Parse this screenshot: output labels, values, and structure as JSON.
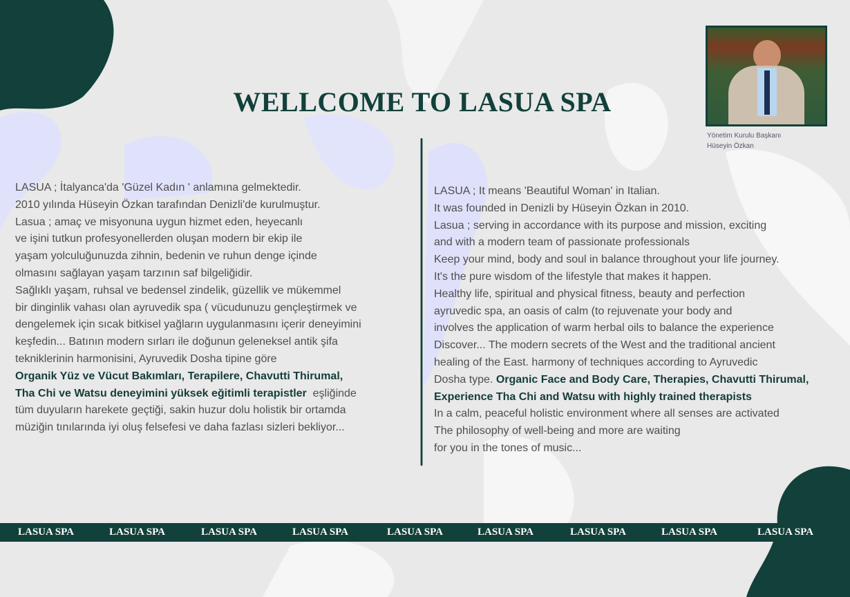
{
  "title": "WELLCOME TO LASUA SPA",
  "portrait": {
    "caption_role": "Yönetim Kurulu Başkanı",
    "caption_name": "Hüseyin Özkan"
  },
  "colors": {
    "brand": "#12403a",
    "background": "#e9e9ea",
    "text": "#4e4e4e"
  },
  "turkish": [
    "LASUA ; İtalyanca'da 'Güzel Kadın ' anlamına gelmektedir.",
    "2010 yılında Hüseyin Özkan tarafından Denizli'de kurulmuştur.",
    "Lasua ; amaç ve misyonuna uygun hizmet eden, heyecanlı",
    "ve işini tutkun profesyonellerden oluşan modern bir ekip ile",
    "yaşam yolculuğunuzda zihnin, bedenin ve ruhun denge içinde",
    "olmasını sağlayan yaşam tarzının  saf bilgeliğidir.",
    "Sağlıklı yaşam, ruhsal ve bedensel zindelik, güzellik ve mükemmel",
    "bir dinginlik vahası olan ayruvedik spa ( vücudunuzu gençleştirmek ve",
    "dengelemek için sıcak bitkisel yağların uygulanmasını içerir deneyimini",
    "keşfedin... Batının modern sırları ile  doğunun geleneksel antik şifa",
    "tekniklerinin harmonisini, Ayruvedik Dosha tipine göre"
  ],
  "turkish_bold_1": "Organik Yüz ve Vücut Bakımları, Terapilere, Chavutti Thirumal,",
  "turkish_bold_2": "Tha Chi ve Watsu deneyimini yüksek eğitimli terapistler",
  "turkish_after_bold": "  eşliğinde",
  "turkish_end": [
    "tüm duyuların harekete geçtiği, sakin huzur dolu holistik bir ortamda",
    "müziğin tınılarında iyi oluş felsefesi ve daha fazlası sizleri bekliyor..."
  ],
  "english": [
    "LASUA ; It means 'Beautiful Woman' in Italian.",
    "It was founded in Denizli by Hüseyin Özkan in 2010.",
    "Lasua ; serving in accordance with its purpose and mission, exciting",
    "and with a modern team of passionate professionals",
    "Keep your mind, body and soul in balance throughout your life journey.",
    "It's the pure wisdom of the lifestyle that makes it happen.",
    "Healthy life, spiritual and physical fitness, beauty and perfection",
    "ayruvedic spa, an oasis of calm (to rejuvenate your body and",
    "involves the application of warm herbal oils to balance the experience",
    "Discover... The modern secrets of the West and the traditional ancient",
    "healing of the East. harmony of techniques according to Ayruvedic"
  ],
  "english_pre_bold": "Dosha type. ",
  "english_bold_1": "Organic Face and Body Care, Therapies, Chavutti Thirumal,",
  "english_bold_2": "Experience Tha Chi and Watsu with highly trained therapists",
  "english_end": [
    "In a calm, peaceful holistic environment where all senses are activated",
    "The philosophy of well-being and more are waiting",
    "for you in the tones of music..."
  ],
  "band_items": [
    "LASUA SPA",
    "LASUA SPA",
    "LASUA SPA",
    "LASUA SPA",
    "LASUA SPA",
    "LASUA SPA",
    "LASUA SPA",
    "LASUA SPA",
    "LASUA SPA"
  ]
}
